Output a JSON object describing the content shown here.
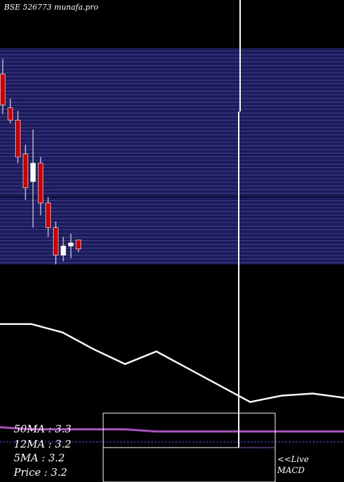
{
  "header": {
    "title": "BSE 526773 munafa.pro"
  },
  "stats": {
    "ma50": "50MA : 3.3",
    "ma12": "12MA : 3.2",
    "ma5": "5MA : 3.2",
    "price": "Price   : 3.2"
  },
  "links": {
    "live": "<<Live",
    "macd": "MACD"
  },
  "colors": {
    "panel_bg": "#1b1b5e",
    "grid": "#5a5a9a",
    "up": "#ffffff",
    "down": "#cc0000",
    "ma_line": "#ffffff",
    "signal_line": "#b04cc8",
    "zero_line": "#3a3aff"
  },
  "chart_data": [
    {
      "type": "candlestick",
      "title": "",
      "candles": [
        {
          "open": 6.2,
          "high": 6.7,
          "low": 4.9,
          "close": 5.2
        },
        {
          "open": 5.1,
          "high": 5.4,
          "low": 4.6,
          "close": 4.7
        },
        {
          "open": 4.7,
          "high": 5.0,
          "low": 3.3,
          "close": 3.5
        },
        {
          "open": 3.6,
          "high": 3.9,
          "low": 2.1,
          "close": 2.5
        },
        {
          "open": 2.7,
          "high": 4.4,
          "low": 1.2,
          "close": 3.3
        },
        {
          "open": 3.3,
          "high": 3.5,
          "low": 1.6,
          "close": 2.0
        },
        {
          "open": 2.0,
          "high": 2.2,
          "low": 0.9,
          "close": 1.2
        },
        {
          "open": 1.2,
          "high": 1.4,
          "low": 0.0,
          "close": 0.3
        },
        {
          "open": 0.3,
          "high": 0.9,
          "low": 0.1,
          "close": 0.6
        },
        {
          "open": 0.6,
          "high": 1.0,
          "low": 0.2,
          "close": 0.7
        },
        {
          "open": 0.8,
          "high": 0.8,
          "low": 0.4,
          "close": 0.5
        }
      ],
      "ylim": [
        0.0,
        7.0
      ]
    },
    {
      "type": "line",
      "title": "",
      "x": [
        0,
        1,
        2,
        3,
        4,
        5,
        6,
        7,
        8,
        9,
        10,
        11
      ],
      "series": [
        {
          "values": [
            3.0,
            3.0,
            2.6,
            1.8,
            1.1,
            1.7,
            0.9,
            0.1,
            -0.7,
            -0.4,
            -0.3,
            -0.5
          ]
        },
        {
          "values": [
            -1.9,
            -2.0,
            -2.0,
            -2.0,
            -2.0,
            -2.1,
            -2.1,
            -2.1,
            -2.1,
            -2.1,
            -2.1,
            -2.1
          ]
        },
        {
          "values": [
            -2.6,
            -2.6,
            -2.6,
            -2.6,
            -2.6,
            -2.6,
            -2.6,
            -2.6,
            -2.6,
            -2.6,
            -2.6,
            -2.6
          ]
        }
      ],
      "ylim": [
        -4.5,
        4.0
      ]
    }
  ]
}
